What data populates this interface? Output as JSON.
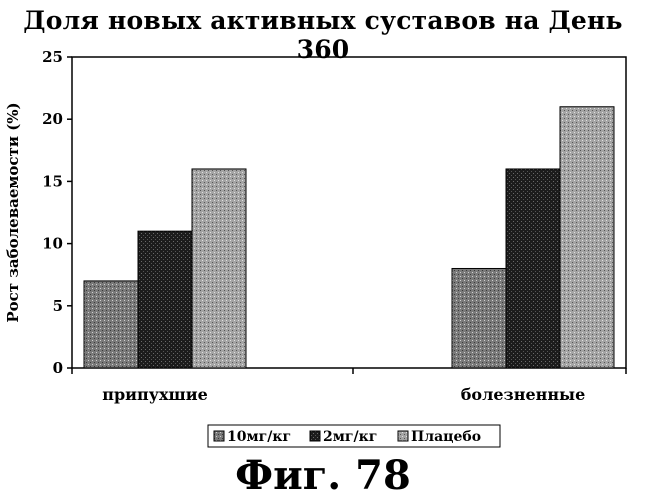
{
  "figure_caption": "Фиг. 78",
  "chart_data": {
    "type": "bar",
    "title": "Доля новых активных суставов на День 360",
    "ylabel": "Рост заболеваемости (%)",
    "xlabel": "",
    "categories": [
      "припухшие",
      "болезненные"
    ],
    "series": [
      {
        "name": "10мг/кг",
        "values": [
          7,
          8
        ]
      },
      {
        "name": "2мг/кг",
        "values": [
          11,
          16
        ]
      },
      {
        "name": "Плацебо",
        "values": [
          16,
          21
        ]
      }
    ],
    "ylim": [
      0,
      25
    ],
    "yticks": [
      0,
      5,
      10,
      15,
      20,
      25
    ],
    "grid": false,
    "legend_position": "bottom"
  },
  "colors": {
    "series": [
      "#6e6e6e",
      "#2a2a2a",
      "#9a9a9a"
    ],
    "axis": "#000000"
  }
}
